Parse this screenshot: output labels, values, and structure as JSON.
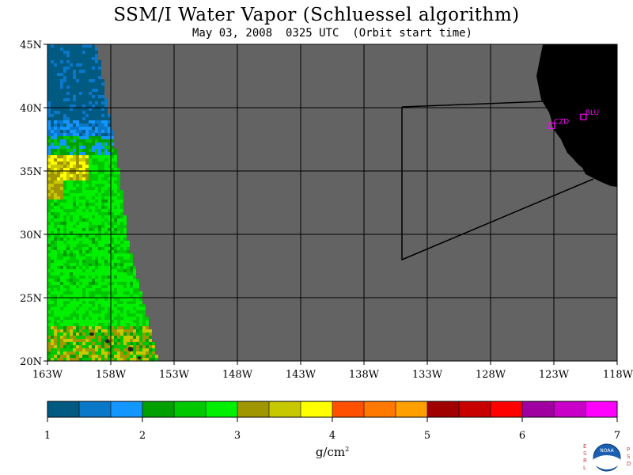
{
  "header": {
    "title": "SSM/I Water Vapor (Schluessel algorithm)",
    "subtitle": "May 03, 2008  0325 UTC  (Orbit start time)"
  },
  "map": {
    "lat_labels": [
      "45N",
      "40N",
      "35N",
      "30N",
      "25N",
      "20N"
    ],
    "lon_labels": [
      "163W",
      "158W",
      "153W",
      "148W",
      "143W",
      "138W",
      "133W",
      "128W",
      "123W",
      "118W"
    ],
    "stations": [
      {
        "name": "CZD",
        "lat": 38.6,
        "lon": -123.2
      },
      {
        "name": "BLU",
        "lat": 39.3,
        "lon": -120.7
      }
    ],
    "colors": {
      "no_data": "#636363",
      "land": "#000000",
      "grid": "#000000",
      "station": "#ff00ff"
    }
  },
  "colorbar": {
    "ticks": [
      "1",
      "2",
      "3",
      "4",
      "5",
      "6",
      "7"
    ],
    "units": "g/cm",
    "units_exp": "2",
    "colors": [
      "#005a82",
      "#0a78c8",
      "#1496ff",
      "#00a000",
      "#00c800",
      "#00f000",
      "#a09600",
      "#c8c800",
      "#ffff00",
      "#ff5000",
      "#ff7800",
      "#ffa000",
      "#a00000",
      "#c80000",
      "#ff0000",
      "#a000a0",
      "#c800c8",
      "#ff00ff"
    ]
  },
  "logo": {
    "left_letters": [
      "E",
      "S",
      "R",
      "L"
    ],
    "right_letters": [
      "P",
      "S",
      "D"
    ],
    "badge_text": "NOAA"
  }
}
